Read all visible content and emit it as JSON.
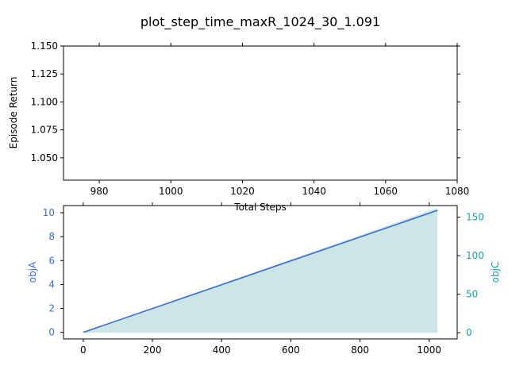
{
  "figure": {
    "title": "plot_step_time_maxR_1024_30_1.091"
  },
  "colors": {
    "axis": "#000000",
    "objA": "#3a6fd0",
    "objC_fill": "#cce6e8",
    "objC_label": "#1f9ea0"
  },
  "chart_data": [
    {
      "type": "line",
      "title": "",
      "xlabel": "Total Steps",
      "ylabel": "Episode Return",
      "xlim": [
        970,
        1080
      ],
      "ylim": [
        1.03,
        1.15
      ],
      "xticks": [
        980,
        1000,
        1020,
        1040,
        1060,
        1080
      ],
      "xtick_labels": [
        "980",
        "1000",
        "1020",
        "1040",
        "1060",
        "1080"
      ],
      "yticks": [
        1.05,
        1.075,
        1.1,
        1.125,
        1.15
      ],
      "ytick_labels": [
        "1.050",
        "1.075",
        "1.100",
        "1.125",
        "1.150"
      ],
      "series": [],
      "grid": false,
      "secondary_ticks_top_right": true
    },
    {
      "type": "line+area",
      "title": "",
      "xlabel": "",
      "ylabel_left": "objA",
      "ylabel_right": "objC",
      "xlim": [
        -57,
        1081
      ],
      "ylim_left": [
        -0.55,
        10.6
      ],
      "ylim_right": [
        -8,
        165
      ],
      "xticks": [
        0,
        200,
        400,
        600,
        800,
        1000
      ],
      "xtick_labels": [
        "0",
        "200",
        "400",
        "600",
        "800",
        "1000"
      ],
      "yticks_left": [
        0,
        2,
        4,
        6,
        8,
        10
      ],
      "ytick_labels_left": [
        "0",
        "2",
        "4",
        "6",
        "8",
        "10"
      ],
      "yticks_right": [
        0,
        50,
        100,
        150
      ],
      "ytick_labels_right": [
        "0",
        "50",
        "100",
        "150"
      ],
      "series": [
        {
          "axis": "left",
          "kind": "line",
          "x": [
            0,
            1024
          ],
          "y": [
            0,
            10.2
          ]
        },
        {
          "axis": "right",
          "kind": "area",
          "x": [
            0,
            1024
          ],
          "y": [
            0,
            162
          ]
        }
      ],
      "grid": false
    }
  ]
}
